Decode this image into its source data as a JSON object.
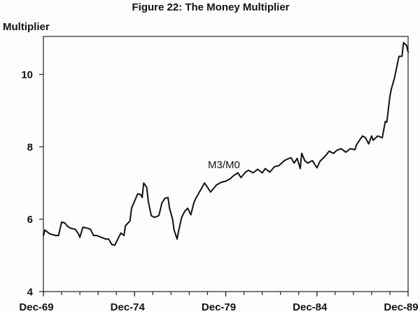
{
  "chart_data": {
    "type": "line",
    "title": "Figure 22: The Money Multiplier",
    "ylabel": "Multiplier",
    "xlim": [
      "1969-12",
      "1989-12"
    ],
    "ylim": [
      4,
      11.05
    ],
    "y_ticks": [
      4,
      6,
      8,
      10
    ],
    "x_ticks": [
      "Dec-69",
      "Dec-74",
      "Dec-79",
      "Dec-84",
      "Dec-89"
    ],
    "x_tick_values": [
      "1969-12",
      "1974-12",
      "1979-12",
      "1984-12",
      "1989-12"
    ],
    "grid": false,
    "x": [
      "1969-12",
      "1970-01",
      "1970-04",
      "1970-08",
      "1970-10",
      "1970-12",
      "1971-02",
      "1971-04",
      "1971-06",
      "1971-09",
      "1971-11",
      "1971-12",
      "1972-02",
      "1972-05",
      "1972-07",
      "1972-09",
      "1972-11",
      "1973-02",
      "1973-05",
      "1973-07",
      "1973-09",
      "1973-11",
      "1974-01",
      "1974-03",
      "1974-05",
      "1974-06",
      "1974-09",
      "1974-10",
      "1974-12",
      "1975-02",
      "1975-04",
      "1975-05",
      "1975-06",
      "1975-08",
      "1975-09",
      "1975-11",
      "1976-01",
      "1976-03",
      "1976-04",
      "1976-06",
      "1976-08",
      "1976-10",
      "1976-11",
      "1977-01",
      "1977-02",
      "1977-04",
      "1977-05",
      "1977-07",
      "1977-09",
      "1977-11",
      "1978-01",
      "1978-03",
      "1978-04",
      "1978-06",
      "1978-08",
      "1978-10",
      "1978-12",
      "1979-02",
      "1979-04",
      "1979-06",
      "1979-09",
      "1979-12",
      "1980-03",
      "1980-05",
      "1980-08",
      "1980-10",
      "1981-01",
      "1981-03",
      "1981-06",
      "1981-09",
      "1981-12",
      "1982-02",
      "1982-05",
      "1982-08",
      "1982-11",
      "1983-02",
      "1983-04",
      "1983-07",
      "1983-09",
      "1983-11",
      "1984-01",
      "1984-02",
      "1984-04",
      "1984-06",
      "1984-09",
      "1984-12",
      "1985-02",
      "1985-05",
      "1985-08",
      "1985-11",
      "1986-01",
      "1986-04",
      "1986-07",
      "1986-10",
      "1987-01",
      "1987-02",
      "1987-04",
      "1987-06",
      "1987-08",
      "1987-10",
      "1987-12",
      "1988-01",
      "1988-04",
      "1988-07",
      "1988-09",
      "1988-10",
      "1988-12",
      "1989-01",
      "1989-03",
      "1989-05",
      "1989-06",
      "1989-08",
      "1989-09",
      "1989-11",
      "1989-12"
    ],
    "series": [
      {
        "name": "M3/M0",
        "color": "#111111",
        "values": [
          5.55,
          5.7,
          5.6,
          5.55,
          5.55,
          5.92,
          5.9,
          5.8,
          5.75,
          5.72,
          5.6,
          5.5,
          5.78,
          5.75,
          5.72,
          5.55,
          5.55,
          5.5,
          5.45,
          5.45,
          5.3,
          5.28,
          5.45,
          5.62,
          5.55,
          5.82,
          5.95,
          6.3,
          6.5,
          6.7,
          6.68,
          6.6,
          7.0,
          6.88,
          6.5,
          6.1,
          6.05,
          6.08,
          6.1,
          6.45,
          6.58,
          6.6,
          6.3,
          6.0,
          5.7,
          5.45,
          5.68,
          6.05,
          6.22,
          6.3,
          6.12,
          6.45,
          6.55,
          6.7,
          6.85,
          7.0,
          6.88,
          6.75,
          6.85,
          6.95,
          7.02,
          7.05,
          7.12,
          7.2,
          7.28,
          7.15,
          7.3,
          7.35,
          7.28,
          7.38,
          7.28,
          7.4,
          7.3,
          7.45,
          7.48,
          7.6,
          7.65,
          7.7,
          7.55,
          7.68,
          7.4,
          7.82,
          7.62,
          7.55,
          7.62,
          7.42,
          7.6,
          7.72,
          7.88,
          7.82,
          7.9,
          7.95,
          7.85,
          7.95,
          7.92,
          8.05,
          8.18,
          8.3,
          8.25,
          8.08,
          8.3,
          8.18,
          8.3,
          8.25,
          8.7,
          8.68,
          9.4,
          9.6,
          9.9,
          10.3,
          10.5,
          10.5,
          10.88,
          10.8,
          10.62
        ]
      }
    ]
  }
}
